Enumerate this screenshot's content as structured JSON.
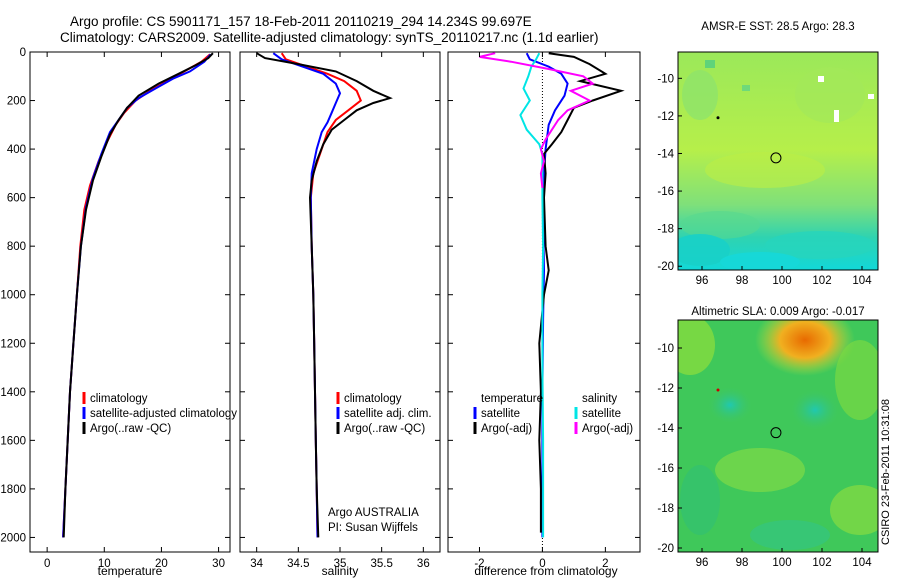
{
  "title": {
    "line1": "Argo profile: CS 5901171_157 18-Feb-2011 20110219_294 14.234S 99.697E",
    "line2": "Climatology: CARS2009. Satellite-adjusted climatology: synTS_20110217.nc (1.1d earlier)"
  },
  "side_stamp": "CSIRO 23-Feb-2011 10:31:08",
  "colors": {
    "climatology": "#ff0000",
    "satellite": "#0000ff",
    "argo": "#000000",
    "sat_diff_temp": "#0000ff",
    "sat_diff_sal": "#00e5e5",
    "argo_diff_sal": "#ff00ff"
  },
  "chart_data": [
    {
      "type": "line",
      "name": "temperature-profile",
      "xlabel": "temperature",
      "ylabel": "",
      "xlim": [
        -3,
        32
      ],
      "ylim": [
        2060,
        0
      ],
      "xticks": [
        0,
        10,
        20,
        30
      ],
      "yticks": [
        0,
        200,
        400,
        600,
        800,
        1000,
        1200,
        1400,
        1600,
        1800,
        2000
      ],
      "legend": [
        "climatology",
        "satellite-adjusted climatology",
        "Argo(..raw -QC)"
      ],
      "legend_location": "lower-right",
      "series": [
        {
          "name": "climatology",
          "color": "climatology",
          "points": [
            [
              28.5,
              10
            ],
            [
              27,
              40
            ],
            [
              24,
              80
            ],
            [
              21,
              120
            ],
            [
              18,
              160
            ],
            [
              15.5,
              200
            ],
            [
              13.5,
              250
            ],
            [
              12,
              300
            ],
            [
              10.5,
              370
            ],
            [
              9,
              450
            ],
            [
              7.5,
              550
            ],
            [
              6.5,
              650
            ],
            [
              5.8,
              800
            ],
            [
              5.2,
              1000
            ],
            [
              4.6,
              1200
            ],
            [
              4,
              1400
            ],
            [
              3.6,
              1600
            ],
            [
              3.2,
              1800
            ],
            [
              2.8,
              2000
            ]
          ]
        },
        {
          "name": "satellite",
          "color": "satellite",
          "points": [
            [
              28.6,
              10
            ],
            [
              27.5,
              40
            ],
            [
              25,
              80
            ],
            [
              22,
              110
            ],
            [
              19,
              150
            ],
            [
              16,
              190
            ],
            [
              14,
              230
            ],
            [
              12.5,
              280
            ],
            [
              11,
              330
            ],
            [
              9.5,
              420
            ],
            [
              8,
              520
            ],
            [
              6.8,
              640
            ],
            [
              5.9,
              800
            ],
            [
              5.2,
              1000
            ],
            [
              4.6,
              1200
            ],
            [
              4,
              1400
            ],
            [
              3.6,
              1600
            ],
            [
              3.2,
              1800
            ],
            [
              2.8,
              2000
            ]
          ]
        },
        {
          "name": "argo",
          "color": "argo",
          "points": [
            [
              29,
              5
            ],
            [
              28.2,
              25
            ],
            [
              26,
              55
            ],
            [
              23,
              90
            ],
            [
              19.5,
              130
            ],
            [
              16,
              180
            ],
            [
              14,
              230
            ],
            [
              12.5,
              280
            ],
            [
              11,
              340
            ],
            [
              9.5,
              430
            ],
            [
              8,
              530
            ],
            [
              6.8,
              650
            ],
            [
              5.9,
              800
            ],
            [
              5.2,
              1000
            ],
            [
              4.6,
              1200
            ],
            [
              4,
              1400
            ],
            [
              3.6,
              1600
            ],
            [
              3.2,
              1800
            ],
            [
              2.9,
              2000
            ]
          ]
        }
      ]
    },
    {
      "type": "line",
      "name": "salinity-profile",
      "xlabel": "salinity",
      "ylabel": "",
      "xlim": [
        33.8,
        36.2
      ],
      "ylim": [
        2060,
        0
      ],
      "xticks": [
        34,
        34.5,
        35,
        35.5,
        36
      ],
      "yticks": [
        0,
        200,
        400,
        600,
        800,
        1000,
        1200,
        1400,
        1600,
        1800,
        2000
      ],
      "legend": [
        "climatology",
        "satellite adj. clim.",
        "Argo(..raw -QC)"
      ],
      "legend_location": "lower-right",
      "annotation_lines": [
        "Argo AUSTRALIA",
        "PI: Susan Wijffels"
      ],
      "series": [
        {
          "name": "climatology",
          "color": "climatology",
          "points": [
            [
              34.3,
              5
            ],
            [
              34.35,
              30
            ],
            [
              34.6,
              60
            ],
            [
              34.85,
              90
            ],
            [
              35.05,
              120
            ],
            [
              35.2,
              160
            ],
            [
              35.25,
              200
            ],
            [
              35.1,
              240
            ],
            [
              34.95,
              280
            ],
            [
              34.85,
              330
            ],
            [
              34.78,
              400
            ],
            [
              34.68,
              500
            ],
            [
              34.65,
              600
            ],
            [
              34.66,
              800
            ],
            [
              34.68,
              1000
            ],
            [
              34.69,
              1200
            ],
            [
              34.7,
              1400
            ],
            [
              34.71,
              1600
            ],
            [
              34.72,
              1800
            ],
            [
              34.73,
              2000
            ]
          ]
        },
        {
          "name": "satellite",
          "color": "satellite",
          "points": [
            [
              34.2,
              5
            ],
            [
              34.3,
              30
            ],
            [
              34.55,
              60
            ],
            [
              34.8,
              90
            ],
            [
              34.95,
              130
            ],
            [
              35.0,
              170
            ],
            [
              34.95,
              210
            ],
            [
              34.9,
              250
            ],
            [
              34.85,
              290
            ],
            [
              34.78,
              330
            ],
            [
              34.72,
              400
            ],
            [
              34.66,
              500
            ],
            [
              34.65,
              600
            ],
            [
              34.66,
              800
            ],
            [
              34.68,
              1000
            ],
            [
              34.69,
              1200
            ],
            [
              34.7,
              1400
            ],
            [
              34.71,
              1600
            ],
            [
              34.72,
              1800
            ],
            [
              34.73,
              2000
            ]
          ]
        },
        {
          "name": "argo",
          "color": "argo",
          "points": [
            [
              34.0,
              5
            ],
            [
              34.1,
              25
            ],
            [
              34.5,
              50
            ],
            [
              34.95,
              80
            ],
            [
              35.2,
              120
            ],
            [
              35.4,
              160
            ],
            [
              35.6,
              190
            ],
            [
              35.4,
              210
            ],
            [
              35.2,
              240
            ],
            [
              35.05,
              280
            ],
            [
              34.9,
              320
            ],
            [
              34.8,
              380
            ],
            [
              34.72,
              450
            ],
            [
              34.66,
              530
            ],
            [
              34.64,
              600
            ],
            [
              34.66,
              800
            ],
            [
              34.68,
              1000
            ],
            [
              34.69,
              1200
            ],
            [
              34.7,
              1400
            ],
            [
              34.71,
              1600
            ],
            [
              34.72,
              1800
            ],
            [
              34.74,
              2000
            ]
          ]
        }
      ]
    },
    {
      "type": "line",
      "name": "difference-profile",
      "xlabel": "difference from climatology",
      "ylabel": "",
      "xlim": [
        -3,
        3.1
      ],
      "ylim": [
        2060,
        0
      ],
      "xticks": [
        -2,
        0,
        2
      ],
      "xtick_labels": [
        "-2",
        "0",
        "2"
      ],
      "yticks": [
        0,
        200,
        400,
        600,
        800,
        1000,
        1200,
        1400,
        1600,
        1800,
        2000
      ],
      "legend_temperature_heading": "temperature",
      "legend_salinity_heading": "salinity",
      "legend_temperature": [
        "satellite",
        "Argo(-adj)"
      ],
      "legend_salinity": [
        "satellite",
        "Argo(-adj)"
      ],
      "legend_location": "lower-center",
      "series": [
        {
          "name": "temperature satellite",
          "color": "sat_diff_temp",
          "points": [
            [
              -0.5,
              5
            ],
            [
              -0.4,
              30
            ],
            [
              0.2,
              60
            ],
            [
              0.6,
              90
            ],
            [
              0.8,
              130
            ],
            [
              0.7,
              180
            ],
            [
              0.4,
              240
            ],
            [
              0.2,
              300
            ],
            [
              0.1,
              400
            ],
            [
              0.05,
              500
            ],
            [
              0.02,
              700
            ],
            [
              0.05,
              900
            ],
            [
              0.02,
              1100
            ],
            [
              0.0,
              1400
            ],
            [
              0.0,
              1700
            ],
            [
              0.0,
              2000
            ]
          ]
        },
        {
          "name": "temperature Argo(-adj)",
          "color": "argo",
          "points": [
            [
              0.2,
              5
            ],
            [
              1.0,
              20
            ],
            [
              1.5,
              50
            ],
            [
              2.0,
              90
            ],
            [
              1.2,
              120
            ],
            [
              2.5,
              160
            ],
            [
              1.6,
              200
            ],
            [
              1.0,
              230
            ],
            [
              0.8,
              280
            ],
            [
              0.6,
              330
            ],
            [
              0.3,
              380
            ],
            [
              0.05,
              420
            ],
            [
              0.1,
              500
            ],
            [
              0.05,
              600
            ],
            [
              0.1,
              800
            ],
            [
              0.2,
              900
            ],
            [
              0.05,
              1000
            ],
            [
              -0.1,
              1200
            ],
            [
              -0.05,
              1400
            ],
            [
              -0.1,
              1600
            ],
            [
              -0.05,
              1800
            ],
            [
              -0.05,
              1980
            ]
          ]
        },
        {
          "name": "salinity satellite",
          "color": "sat_diff_sal",
          "points": [
            [
              -0.1,
              5
            ],
            [
              -0.2,
              30
            ],
            [
              -0.35,
              60
            ],
            [
              -0.45,
              100
            ],
            [
              -0.6,
              150
            ],
            [
              -0.4,
              200
            ],
            [
              -0.7,
              260
            ],
            [
              -0.5,
              320
            ],
            [
              -0.1,
              380
            ],
            [
              0.0,
              420
            ],
            [
              0.0,
              600
            ],
            [
              0.02,
              800
            ],
            [
              0.0,
              1000
            ],
            [
              0.0,
              1300
            ],
            [
              0.02,
              1600
            ],
            [
              0.02,
              2000
            ]
          ]
        },
        {
          "name": "salinity Argo(-adj)",
          "color": "argo_diff_sal",
          "points": [
            [
              -1.5,
              5
            ],
            [
              -2.0,
              20
            ],
            [
              -1.0,
              40
            ],
            [
              0.2,
              70
            ],
            [
              1.3,
              100
            ],
            [
              1.6,
              130
            ],
            [
              0.9,
              160
            ],
            [
              1.5,
              200
            ],
            [
              0.8,
              240
            ],
            [
              0.5,
              280
            ],
            [
              0.3,
              320
            ],
            [
              0.1,
              360
            ],
            [
              -0.05,
              400
            ],
            [
              0.05,
              450
            ],
            [
              -0.05,
              500
            ],
            [
              0.0,
              560
            ]
          ]
        }
      ]
    },
    {
      "type": "heatmap",
      "name": "amsr-sst-map",
      "title": "AMSR-E SST: 28.5 Argo: 28.3",
      "xlim": [
        94.8,
        104.8
      ],
      "ylim": [
        -20.2,
        -8.6
      ],
      "xticks": [
        96,
        98,
        100,
        102,
        104
      ],
      "yticks": [
        -10,
        -12,
        -14,
        -16,
        -18,
        -20
      ],
      "marker_lon": 99.697,
      "marker_lat": -14.234,
      "prev_marker_lon": 96.8,
      "prev_marker_lat": -12.1
    },
    {
      "type": "heatmap",
      "name": "altimetric-sla-map",
      "title": "Altimetric SLA: 0.009 Argo: -0.017",
      "xlim": [
        94.8,
        104.8
      ],
      "ylim": [
        -20.2,
        -8.6
      ],
      "xticks": [
        96,
        98,
        100,
        102,
        104
      ],
      "yticks": [
        -10,
        -12,
        -14,
        -16,
        -18,
        -20
      ],
      "marker_lon": 99.697,
      "marker_lat": -14.234,
      "prev_marker_lon": 96.8,
      "prev_marker_lat": -12.1
    }
  ]
}
